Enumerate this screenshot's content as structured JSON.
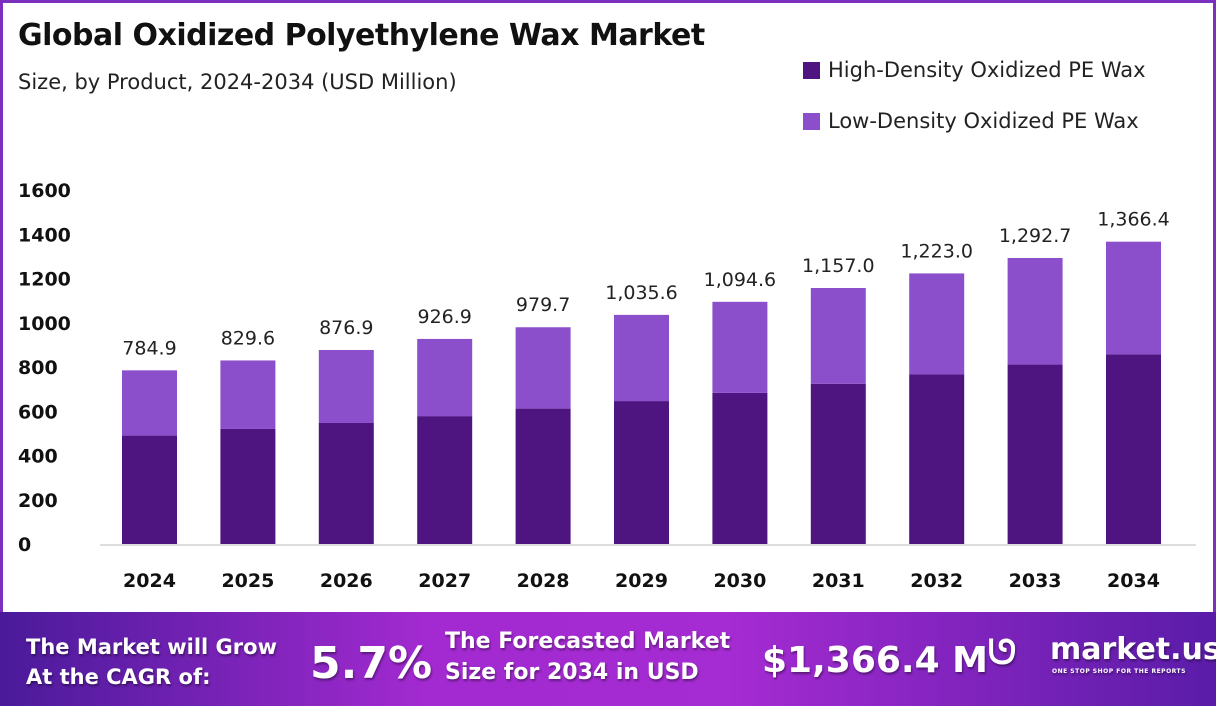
{
  "chart_data": {
    "type": "bar",
    "stacked": true,
    "title": "Global Oxidized Polyethylene Wax Market",
    "subtitle": "Size, by Product, 2024-2034 (USD Million)",
    "categories": [
      "2024",
      "2025",
      "2026",
      "2027",
      "2028",
      "2029",
      "2030",
      "2031",
      "2032",
      "2033",
      "2034"
    ],
    "series": [
      {
        "name": "High-Density Oxidized PE Wax",
        "color": "#4e1580",
        "values": [
          490,
          520,
          547,
          578,
          612,
          646,
          683,
          724,
          766,
          811,
          857
        ]
      },
      {
        "name": "Low-Density Oxidized PE Wax",
        "color": "#8b4fcc",
        "values": [
          294.9,
          309.6,
          329.9,
          348.9,
          367.7,
          389.6,
          411.6,
          433.0,
          457.0,
          481.7,
          509.4
        ]
      }
    ],
    "totals": [
      "784.9",
      "829.6",
      "876.9",
      "926.9",
      "979.7",
      "1,035.6",
      "1,094.6",
      "1,157.0",
      "1,223.0",
      "1,292.7",
      "1,366.4"
    ],
    "totals_values": [
      784.9,
      829.6,
      876.9,
      926.9,
      979.7,
      1035.6,
      1094.6,
      1157.0,
      1223.0,
      1292.7,
      1366.4
    ],
    "yticks": [
      "0",
      "200",
      "400",
      "600",
      "800",
      "1000",
      "1200",
      "1400",
      "1600"
    ],
    "ylim": [
      0,
      1600
    ],
    "grid": false,
    "legend": "top-right"
  },
  "banner": {
    "cagr_label_1": "The Market will Grow",
    "cagr_label_2": "At the CAGR of:",
    "cagr_value": "5.7%",
    "forecast_label_1": "The Forecasted Market",
    "forecast_label_2": "Size for 2034 in USD",
    "forecast_value": "$1,366.4 M",
    "logo_text": "market.us",
    "logo_tagline": "ONE STOP SHOP FOR THE REPORTS"
  }
}
